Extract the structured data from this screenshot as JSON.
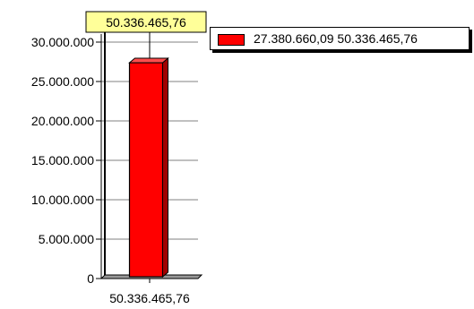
{
  "chart_data": {
    "type": "bar",
    "categories": [
      "50.336.465,76"
    ],
    "series": [
      {
        "name": "27.380.660,09 50.336.465,76",
        "values": [
          27380660.09
        ],
        "color": "#ff0000"
      }
    ],
    "y_ticks": [
      "0",
      "5.000.000",
      "10.000.000",
      "15.000.000",
      "20.000.000",
      "25.000.000",
      "30.000.000"
    ],
    "ylim": [
      0,
      30000000
    ],
    "callout": {
      "label": "50.336.465,76",
      "value": 50336465.76,
      "color": "#ffff99"
    },
    "grid": true,
    "legend_position": "top-right"
  }
}
